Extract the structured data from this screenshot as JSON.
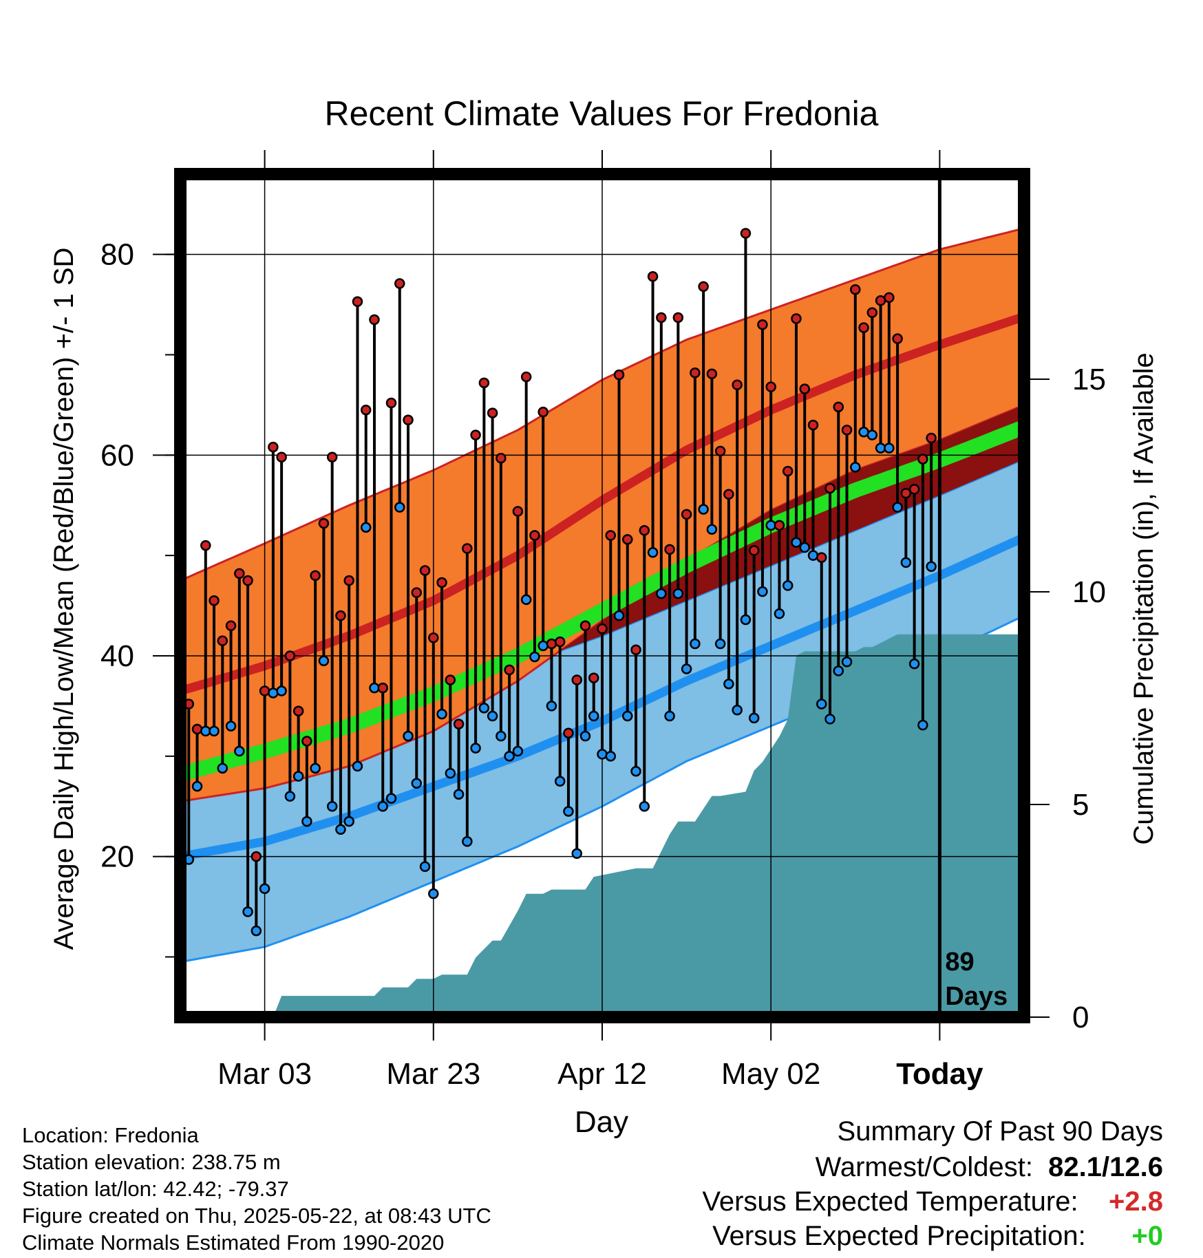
{
  "chart_data": {
    "type": "line",
    "title": "Recent Climate Values For Fredonia",
    "xlabel": "Day",
    "ylabel_left": "Average Daily High/Low/Mean (Red/Blue/Green) +/- 1 SD",
    "ylabel_right": "Cumulative Precipitation (in), If Available",
    "ylim": [
      4,
      88
    ],
    "yticks": [
      20,
      40,
      60,
      80
    ],
    "precip_ylim": [
      0,
      20
    ],
    "precip_ticks": [
      0,
      5,
      10,
      15
    ],
    "x_tick_labels": [
      "Mar 03",
      "Mar 23",
      "Apr 12",
      "May 02",
      "Today"
    ],
    "x_tick_days": [
      10,
      30,
      50,
      70,
      90
    ],
    "today_label": "89\nDays",
    "normals": {
      "days": [
        0,
        10,
        20,
        30,
        40,
        50,
        60,
        70,
        80,
        90,
        100
      ],
      "high_mean": [
        36.5,
        39.0,
        42.0,
        45.5,
        50.0,
        55.5,
        60.5,
        64.5,
        68.0,
        71.0,
        73.8
      ],
      "high_sd": [
        11.0,
        12.2,
        13.0,
        13.0,
        12.5,
        12.0,
        11.0,
        10.0,
        9.5,
        9.5,
        8.8
      ],
      "low_mean": [
        20.0,
        21.5,
        24.0,
        27.0,
        30.0,
        33.5,
        37.5,
        41.0,
        44.5,
        48.0,
        51.8
      ],
      "low_sd": [
        10.5,
        10.5,
        10.0,
        9.5,
        9.0,
        8.5,
        8.0,
        8.0,
        8.0,
        8.0,
        7.8
      ],
      "avg_mean": [
        28.2,
        30.5,
        33.0,
        36.2,
        40.0,
        44.5,
        49.0,
        53.0,
        56.5,
        59.5,
        62.8
      ]
    },
    "daily": [
      {
        "day": 0,
        "high": 22.5,
        "low": 17.0
      },
      {
        "day": 1,
        "high": 35.2,
        "low": 19.7
      },
      {
        "day": 2,
        "high": 32.7,
        "low": 27.0
      },
      {
        "day": 3,
        "high": 51.0,
        "low": 32.5
      },
      {
        "day": 4,
        "high": 45.5,
        "low": 32.5
      },
      {
        "day": 5,
        "high": 41.5,
        "low": 28.8
      },
      {
        "day": 6,
        "high": 43.0,
        "low": 33.0
      },
      {
        "day": 7,
        "high": 48.2,
        "low": 30.5
      },
      {
        "day": 8,
        "high": 47.5,
        "low": 14.5
      },
      {
        "day": 9,
        "high": 20.0,
        "low": 12.6
      },
      {
        "day": 10,
        "high": 36.5,
        "low": 16.8
      },
      {
        "day": 11,
        "high": 60.8,
        "low": 36.3
      },
      {
        "day": 12,
        "high": 59.8,
        "low": 36.5
      },
      {
        "day": 13,
        "high": 40.0,
        "low": 26.0
      },
      {
        "day": 14,
        "high": 34.5,
        "low": 28.0
      },
      {
        "day": 15,
        "high": 31.5,
        "low": 23.5
      },
      {
        "day": 16,
        "high": 48.0,
        "low": 28.8
      },
      {
        "day": 17,
        "high": 53.2,
        "low": 39.5
      },
      {
        "day": 18,
        "high": 59.8,
        "low": 25.0
      },
      {
        "day": 19,
        "high": 44.0,
        "low": 22.7
      },
      {
        "day": 20,
        "high": 47.5,
        "low": 23.5
      },
      {
        "day": 21,
        "high": 75.3,
        "low": 29.0
      },
      {
        "day": 22,
        "high": 64.5,
        "low": 52.8
      },
      {
        "day": 23,
        "high": 73.5,
        "low": 36.8
      },
      {
        "day": 24,
        "high": 36.8,
        "low": 25.0
      },
      {
        "day": 25,
        "high": 65.2,
        "low": 25.8
      },
      {
        "day": 26,
        "high": 77.1,
        "low": 54.8
      },
      {
        "day": 27,
        "high": 63.5,
        "low": 32.0
      },
      {
        "day": 28,
        "high": 46.3,
        "low": 27.3
      },
      {
        "day": 29,
        "high": 48.5,
        "low": 19.0
      },
      {
        "day": 30,
        "high": 41.8,
        "low": 16.3
      },
      {
        "day": 31,
        "high": 47.3,
        "low": 34.2
      },
      {
        "day": 32,
        "high": 37.6,
        "low": 28.3
      },
      {
        "day": 33,
        "high": 33.2,
        "low": 26.2
      },
      {
        "day": 34,
        "high": 50.7,
        "low": 21.5
      },
      {
        "day": 35,
        "high": 62.0,
        "low": 30.8
      },
      {
        "day": 36,
        "high": 67.2,
        "low": 34.8
      },
      {
        "day": 37,
        "high": 64.2,
        "low": 34.0
      },
      {
        "day": 38,
        "high": 59.7,
        "low": 32.0
      },
      {
        "day": 39,
        "high": 38.6,
        "low": 30.0
      },
      {
        "day": 40,
        "high": 54.4,
        "low": 30.5
      },
      {
        "day": 41,
        "high": 67.8,
        "low": 45.6
      },
      {
        "day": 42,
        "high": 52.0,
        "low": 39.9
      },
      {
        "day": 43,
        "high": 64.3,
        "low": 41.0
      },
      {
        "day": 44,
        "high": 41.2,
        "low": 35.0
      },
      {
        "day": 45,
        "high": 41.4,
        "low": 27.5
      },
      {
        "day": 46,
        "high": 32.3,
        "low": 24.5
      },
      {
        "day": 47,
        "high": 37.6,
        "low": 20.3
      },
      {
        "day": 48,
        "high": 43.0,
        "low": 32.0
      },
      {
        "day": 49,
        "high": 37.8,
        "low": 34.0
      },
      {
        "day": 50,
        "high": 42.7,
        "low": 30.2
      },
      {
        "day": 51,
        "high": 52.0,
        "low": 30.0
      },
      {
        "day": 52,
        "high": 68.0,
        "low": 44.0
      },
      {
        "day": 53,
        "high": 51.6,
        "low": 34.0
      },
      {
        "day": 54,
        "high": 40.6,
        "low": 28.5
      },
      {
        "day": 55,
        "high": 52.5,
        "low": 25.0
      },
      {
        "day": 56,
        "high": 77.8,
        "low": 50.3
      },
      {
        "day": 57,
        "high": 73.7,
        "low": 46.2
      },
      {
        "day": 58,
        "high": 50.6,
        "low": 34.0
      },
      {
        "day": 59,
        "high": 73.7,
        "low": 46.2
      },
      {
        "day": 60,
        "high": 54.1,
        "low": 38.7
      },
      {
        "day": 61,
        "high": 68.2,
        "low": 41.2
      },
      {
        "day": 62,
        "high": 76.8,
        "low": 54.6
      },
      {
        "day": 63,
        "high": 68.1,
        "low": 52.6
      },
      {
        "day": 64,
        "high": 60.4,
        "low": 41.2
      },
      {
        "day": 65,
        "high": 56.1,
        "low": 37.2
      },
      {
        "day": 66,
        "high": 67.0,
        "low": 34.6
      },
      {
        "day": 67,
        "high": 82.1,
        "low": 43.6
      },
      {
        "day": 68,
        "high": 50.5,
        "low": 33.8
      },
      {
        "day": 69,
        "high": 73.0,
        "low": 46.4
      },
      {
        "day": 70,
        "high": 66.8,
        "low": 53.0
      },
      {
        "day": 71,
        "high": 53.0,
        "low": 44.2
      },
      {
        "day": 72,
        "high": 58.4,
        "low": 47.0
      },
      {
        "day": 73,
        "high": 73.6,
        "low": 51.3
      },
      {
        "day": 74,
        "high": 66.6,
        "low": 50.8
      },
      {
        "day": 75,
        "high": 63.0,
        "low": 50.0
      },
      {
        "day": 76,
        "high": 49.8,
        "low": 35.2
      },
      {
        "day": 77,
        "high": 56.7,
        "low": 33.7
      },
      {
        "day": 78,
        "high": 64.8,
        "low": 38.5
      },
      {
        "day": 79,
        "high": 62.5,
        "low": 39.4
      },
      {
        "day": 80,
        "high": 76.5,
        "low": 58.8
      },
      {
        "day": 81,
        "high": 72.7,
        "low": 62.3
      },
      {
        "day": 82,
        "high": 74.2,
        "low": 62.0
      },
      {
        "day": 83,
        "high": 75.4,
        "low": 60.7
      },
      {
        "day": 84,
        "high": 75.7,
        "low": 60.7
      },
      {
        "day": 85,
        "high": 71.6,
        "low": 54.8
      },
      {
        "day": 86,
        "high": 56.2,
        "low": 49.3
      },
      {
        "day": 87,
        "high": 56.6,
        "low": 39.2
      },
      {
        "day": 88,
        "high": 59.6,
        "low": 33.1
      },
      {
        "day": 89,
        "high": 61.7,
        "low": 48.9
      }
    ],
    "cumulative_precip": {
      "days": [
        0,
        11,
        12,
        23,
        24,
        27,
        28,
        30,
        31,
        34,
        35,
        37,
        38,
        40,
        41,
        43,
        44,
        48,
        49,
        54,
        56,
        58,
        59,
        61,
        63,
        64,
        67,
        68,
        69,
        71,
        72,
        73,
        74,
        80,
        81,
        82,
        83,
        85,
        90,
        100
      ],
      "values": [
        0.0,
        0.0,
        0.5,
        0.5,
        0.7,
        0.7,
        0.9,
        0.9,
        1.0,
        1.0,
        1.4,
        1.8,
        1.8,
        2.5,
        2.9,
        2.9,
        3.0,
        3.0,
        3.3,
        3.5,
        3.5,
        4.3,
        4.6,
        4.6,
        5.2,
        5.2,
        5.3,
        5.8,
        6.0,
        6.6,
        7.0,
        8.5,
        8.6,
        8.6,
        8.7,
        8.7,
        8.8,
        9.0,
        9.0,
        9.0
      ]
    },
    "colors": {
      "high_band": "#f47a2c",
      "high_line": "#cc2222",
      "low_band": "#7fbee5",
      "low_line": "#2090f0",
      "avg_line": "#22e022",
      "overlap_band": "#8b1010",
      "precip": "#4a9aa6",
      "high_marker": "#cc2222",
      "low_marker": "#2090f0"
    }
  },
  "info": {
    "location": "Location: Fredonia",
    "elevation": "Station elevation: 238.75 m",
    "latlon": "Station lat/lon: 42.42; -79.37",
    "created": "Figure created on Thu, 2025-05-22, at 08:43 UTC",
    "normals": "Climate Normals Estimated From 1990-2020"
  },
  "summary": {
    "heading": "Summary Of Past 90 Days",
    "warmest_label": "Warmest/Coldest:",
    "warmest_value": "82.1/12.6",
    "temp_label": "Versus Expected Temperature:",
    "temp_value": "+2.8",
    "temp_color": "#d42a2a",
    "precip_label": "Versus Expected Precipitation:",
    "precip_value": "+0",
    "precip_color": "#22cc22"
  }
}
